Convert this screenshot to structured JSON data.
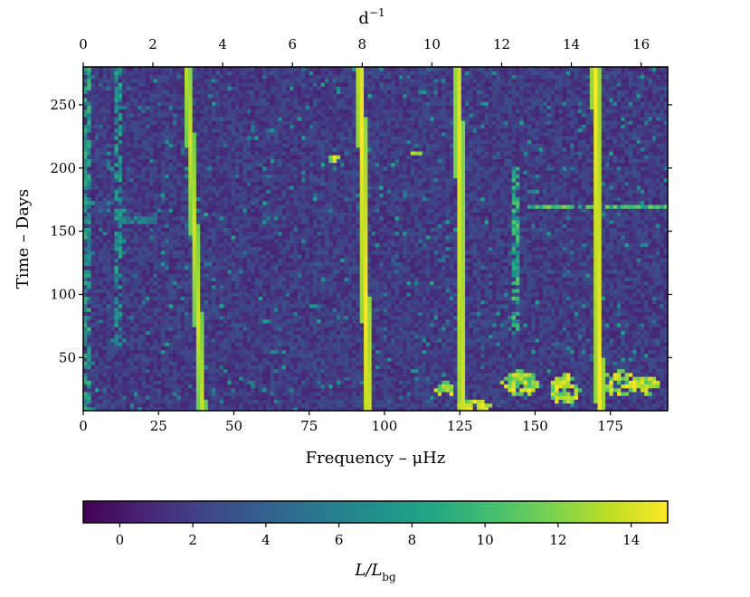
{
  "chart_data": {
    "type": "heatmap",
    "title": "",
    "xlabel": "Frequency – μHz",
    "ylabel": "Time – Days",
    "xlabel_top": "d",
    "xlabel_top_sup": "−1",
    "xlim": [
      0,
      194
    ],
    "ylim": [
      8,
      280
    ],
    "x_ticks": [
      0,
      25,
      50,
      75,
      100,
      125,
      150,
      175
    ],
    "y_ticks": [
      50,
      100,
      150,
      200,
      250
    ],
    "x_top_ticks": [
      0,
      2,
      4,
      6,
      8,
      10,
      12,
      14,
      16
    ],
    "colorbar": {
      "label": "L/L",
      "label_sub": "bg",
      "range": [
        -1,
        15
      ],
      "ticks": [
        0,
        2,
        4,
        6,
        8,
        10,
        12,
        14
      ],
      "colormap": "viridis"
    },
    "features": {
      "drifting_ridges": [
        {
          "x_top": 34.5,
          "x_bottom": 39.5,
          "intensity": 14
        },
        {
          "x_top": 92.0,
          "x_bottom": 94.5,
          "intensity": 15
        },
        {
          "x_top": 124.5,
          "x_bottom": 125.8,
          "intensity": 14.5
        },
        {
          "x_top": 170.0,
          "x_bottom": 171.5,
          "intensity": 15
        }
      ],
      "partial_ridges": [
        {
          "x": 143.0,
          "y_from": 60,
          "y_to": 200,
          "intensity": 11
        },
        {
          "x": 12.0,
          "y_from": 60,
          "y_to": 280,
          "intensity": 9
        },
        {
          "x": 0.8,
          "y_from": 8,
          "y_to": 280,
          "intensity": 10
        }
      ],
      "horizontal_streaks": [
        {
          "y": 170,
          "x_from": 148,
          "x_to": 194,
          "intensity": 12
        },
        {
          "y": 160,
          "x_from": 12,
          "x_to": 24,
          "intensity": 7
        }
      ],
      "bright_blobs": [
        {
          "x": 145,
          "y": 30,
          "rx": 6,
          "ry": 10
        },
        {
          "x": 160,
          "y": 25,
          "rx": 5,
          "ry": 12
        },
        {
          "x": 178,
          "y": 30,
          "rx": 6,
          "ry": 10
        },
        {
          "x": 187,
          "y": 28,
          "rx": 4,
          "ry": 8
        },
        {
          "x": 130,
          "y": 12,
          "rx": 6,
          "ry": 4
        },
        {
          "x": 120,
          "y": 25,
          "rx": 3,
          "ry": 6
        },
        {
          "x": 83,
          "y": 208,
          "rx": 2,
          "ry": 3
        },
        {
          "x": 110,
          "y": 212,
          "rx": 2,
          "ry": 3
        }
      ]
    }
  }
}
